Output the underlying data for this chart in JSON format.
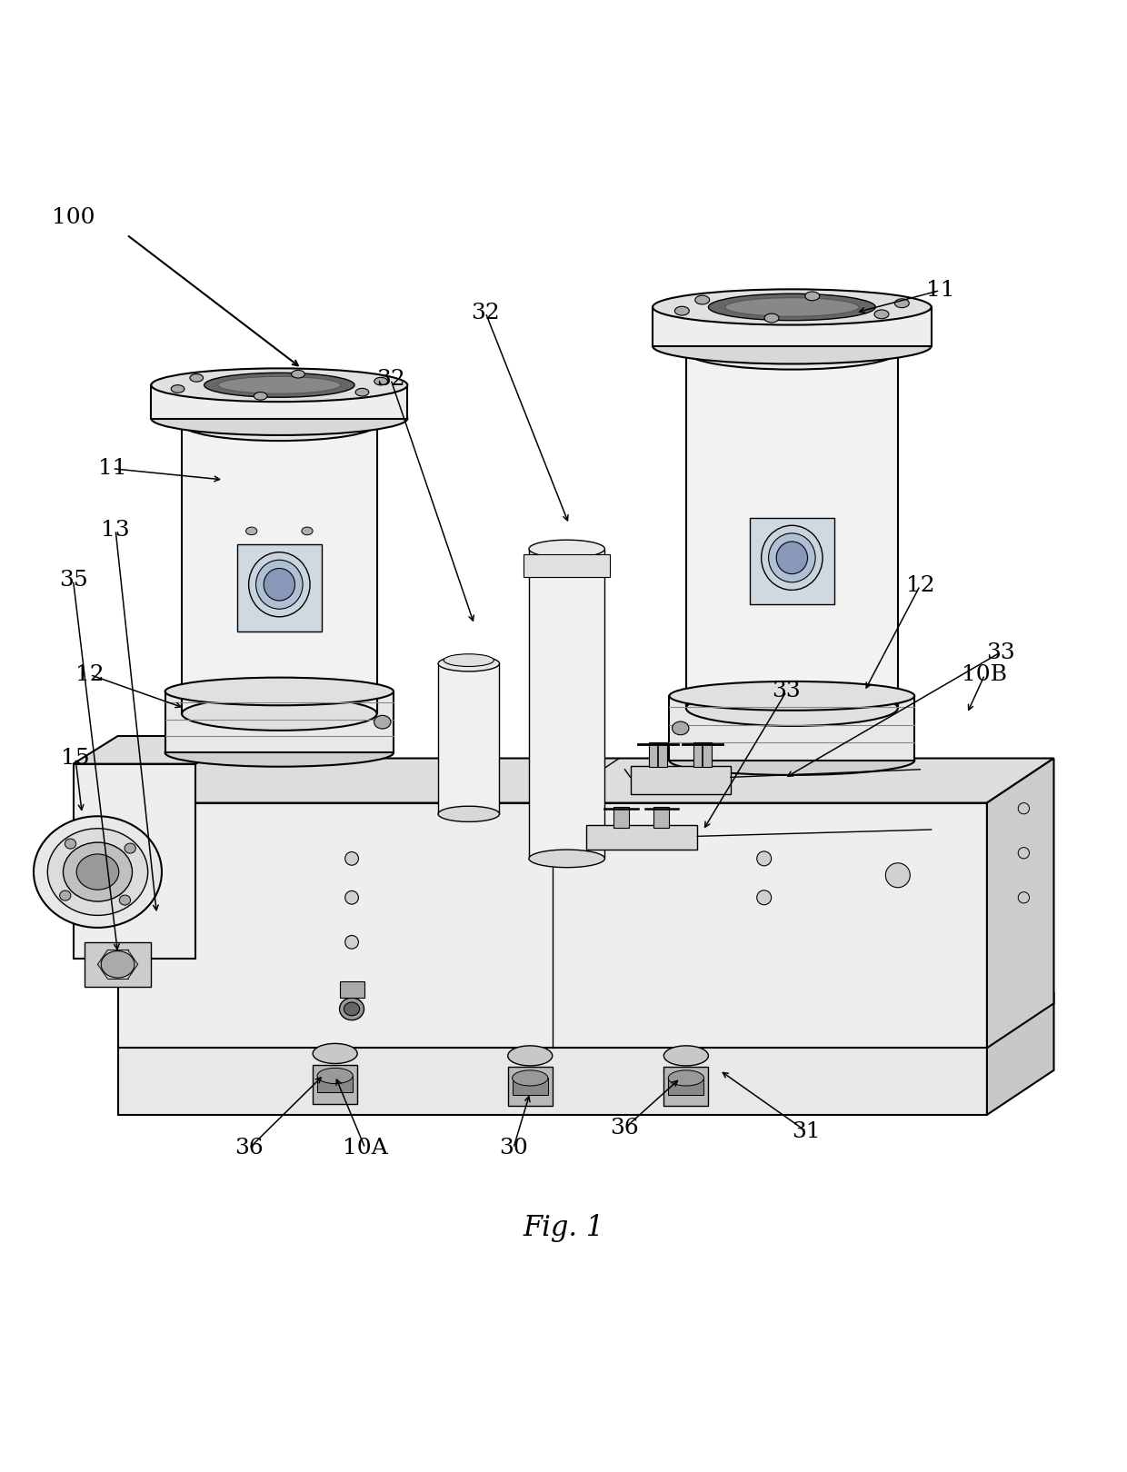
{
  "title": "Fig. 1",
  "title_fontsize": 22,
  "label_fontsize": 18,
  "bg_color": "#ffffff",
  "line_color": "#000000",
  "lw_main": 1.5,
  "lw_thin": 1.0
}
